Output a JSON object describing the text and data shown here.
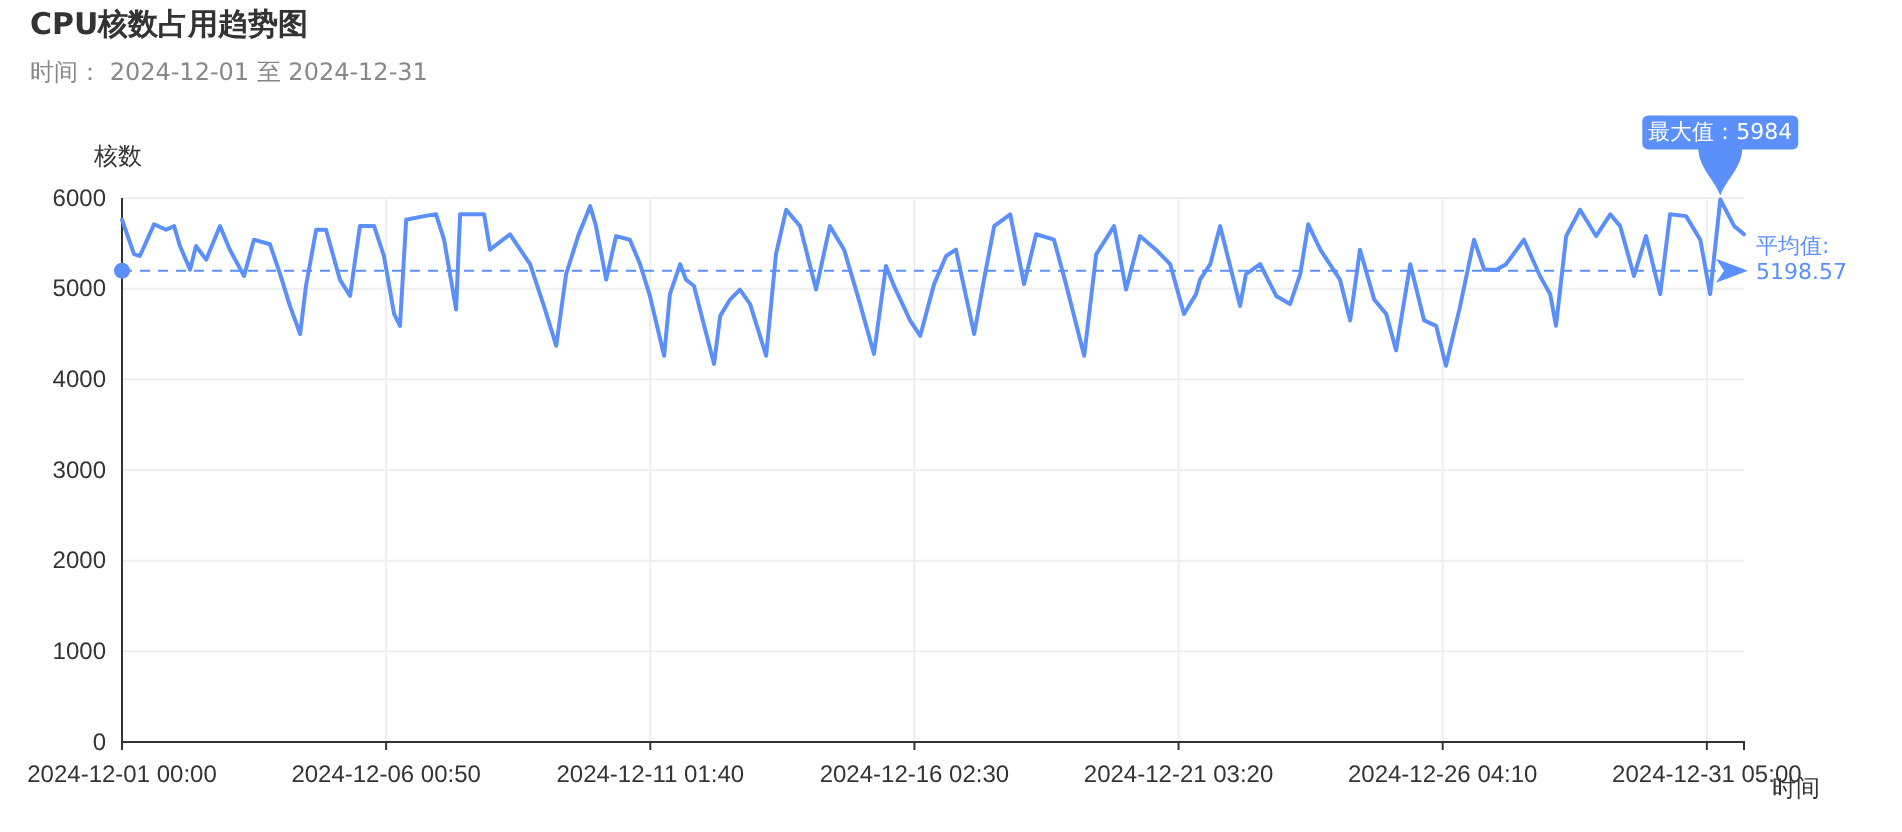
{
  "chart_data": {
    "type": "line",
    "title": "CPU核数占用趋势图",
    "subtitle": "时间： 2024-12-01 至 2024-12-31",
    "xlabel": "时间",
    "ylabel": "核数",
    "x": [
      "2024-12-01T00:00",
      "2024-12-01T05:30",
      "2024-12-01T08:10",
      "2024-12-01T14:40",
      "2024-12-01T20:10",
      "2024-12-01T23:50",
      "2024-12-02T02:30",
      "2024-12-02T07:10",
      "2024-12-02T09:50",
      "2024-12-02T14:30",
      "2024-12-02T20:50",
      "2024-12-03T01:20",
      "2024-12-03T07:50",
      "2024-12-03T12:20",
      "2024-12-03T19:40",
      "2024-12-04T00:20",
      "2024-12-04T04:50",
      "2024-12-04T09:30",
      "2024-12-04T12:10",
      "2024-12-04T16:50",
      "2024-12-04T21:20",
      "2024-12-05T03:40",
      "2024-12-05T08:20",
      "2024-12-05T12:50",
      "2024-12-05T19:20",
      "2024-12-05T23:50",
      "2024-12-06T04:30",
      "2024-12-06T07:10",
      "2024-12-06T10:00",
      "2024-12-06T18:10",
      "2024-12-06T23:40",
      "2024-12-07T03:20",
      "2024-12-07T08:50",
      "2024-12-07T10:40",
      "2024-12-07T17:00",
      "2024-12-07T21:40",
      "2024-12-08T00:20",
      "2024-12-08T09:30",
      "2024-12-08T18:40",
      "2024-12-09T01:00",
      "2024-12-09T06:40",
      "2024-12-09T11:10",
      "2024-12-09T16:40",
      "2024-12-09T22:10",
      "2024-12-10T00:50",
      "2024-12-10T05:30",
      "2024-12-10T10:00",
      "2024-12-10T16:20",
      "2024-12-10T21:00",
      "2024-12-11T01:30",
      "2024-12-11T08:00",
      "2024-12-11T10:40",
      "2024-12-11T15:20",
      "2024-12-11T18:00",
      "2024-12-11T21:40",
      "2024-12-12T02:20",
      "2024-12-12T06:50",
      "2024-12-12T09:40",
      "2024-12-12T14:10",
      "2024-12-12T18:40",
      "2024-12-12T23:20",
      "2024-12-13T06:40",
      "2024-12-13T11:10",
      "2024-12-13T15:50",
      "2024-12-13T22:10",
      "2024-12-14T05:30",
      "2024-12-14T11:50",
      "2024-12-14T18:20",
      "2024-12-15T01:40",
      "2024-12-15T08:00",
      "2024-12-15T13:30",
      "2024-12-15T17:10",
      "2024-12-16T00:30",
      "2024-12-16T05:10",
      "2024-12-16T11:30",
      "2024-12-16T17:00",
      "2024-12-16T21:30",
      "2024-12-17T05:50",
      "2024-12-17T10:20",
      "2024-12-17T15:00",
      "2024-12-17T22:20",
      "2024-12-18T04:40",
      "2024-12-18T10:10",
      "2024-12-18T18:20",
      "2024-12-18T23:50",
      "2024-12-19T08:10",
      "2024-12-19T13:40",
      "2024-12-19T21:50",
      "2024-12-20T03:20",
      "2024-12-20T09:40",
      "2024-12-20T17:00",
      "2024-12-20T23:30",
      "2024-12-21T05:50",
      "2024-12-21T11:20",
      "2024-12-21T13:10",
      "2024-12-21T17:50",
      "2024-12-21T22:20",
      "2024-12-22T07:30",
      "2024-12-22T10:10",
      "2024-12-22T16:40",
      "2024-12-23T00:00",
      "2024-12-23T06:20",
      "2024-12-23T11:00",
      "2024-12-23T14:40",
      "2024-12-23T20:10",
      "2024-12-24T05:10",
      "2024-12-24T09:50",
      "2024-12-24T14:20",
      "2024-12-24T20:50",
      "2024-12-25T02:20",
      "2024-12-25T06:50",
      "2024-12-25T13:20",
      "2024-12-25T19:40",
      "2024-12-26T01:10",
      "2024-12-26T05:40",
      "2024-12-26T12:10",
      "2024-12-26T18:30",
      "2024-12-26T23:10",
      "2024-12-27T04:40",
      "2024-12-27T09:10",
      "2024-12-27T17:20",
      "2024-12-28T00:40",
      "2024-12-28T05:20",
      "2024-12-28T08:00",
      "2024-12-28T12:40",
      "2024-12-28T19:00",
      "2024-12-29T02:20",
      "2024-12-29T08:50",
      "2024-12-29T13:20",
      "2024-12-29T19:40",
      "2024-12-30T01:10",
      "2024-12-30T07:40",
      "2024-12-30T12:10",
      "2024-12-30T19:30",
      "2024-12-31T02:00",
      "2024-12-31T06:30",
      "2024-12-31T11:10",
      "2024-12-31T17:30",
      "2024-12-31T22:00"
    ],
    "series": [
      {
        "color": "#5b8ff9",
        "values": [
          5760,
          5380,
          5360,
          5710,
          5650,
          5690,
          5470,
          5210,
          5470,
          5320,
          5690,
          5430,
          5140,
          5540,
          5490,
          5160,
          4810,
          4500,
          5030,
          5650,
          5650,
          5100,
          4920,
          5690,
          5690,
          5360,
          4720,
          4590,
          5760,
          5800,
          5820,
          5540,
          4770,
          5820,
          5820,
          5820,
          5430,
          5600,
          5270,
          4810,
          4370,
          5160,
          5580,
          5910,
          5690,
          5100,
          5580,
          5540,
          5270,
          4920,
          4260,
          4940,
          5270,
          5100,
          5030,
          4590,
          4170,
          4700,
          4880,
          4990,
          4830,
          4260,
          5380,
          5870,
          5690,
          4990,
          5690,
          5430,
          4830,
          4280,
          5250,
          5030,
          4650,
          4480,
          5050,
          5360,
          5430,
          4500,
          5100,
          5690,
          5820,
          5050,
          5600,
          5540,
          5050,
          4260,
          5380,
          5690,
          4990,
          5580,
          5430,
          5270,
          4720,
          4940,
          5100,
          5270,
          5690,
          4810,
          5160,
          5270,
          4920,
          4830,
          5160,
          5710,
          5430,
          5100,
          4650,
          5430,
          4880,
          4720,
          4320,
          5270,
          4650,
          4590,
          4150,
          4810,
          5540,
          5210,
          5210,
          5270,
          5540,
          5140,
          4940,
          4590,
          5580,
          5870,
          5580,
          5820,
          5690,
          5140,
          5580,
          4940,
          5820,
          5800,
          5540,
          4940,
          5984,
          5690,
          5600
        ]
      }
    ],
    "xlim": [
      "2024-12-01T00:00",
      "2024-12-31T22:00"
    ],
    "xticks": [
      {
        "value": "2024-12-01T00:00",
        "label": "2024-12-01 00:00"
      },
      {
        "value": "2024-12-06T00:50",
        "label": "2024-12-06 00:50"
      },
      {
        "value": "2024-12-11T01:40",
        "label": "2024-12-11 01:40"
      },
      {
        "value": "2024-12-16T02:30",
        "label": "2024-12-16 02:30"
      },
      {
        "value": "2024-12-21T03:20",
        "label": "2024-12-21 03:20"
      },
      {
        "value": "2024-12-26T04:10",
        "label": "2024-12-26 04:10"
      },
      {
        "value": "2024-12-31T05:00",
        "label": "2024-12-31 05:00"
      }
    ],
    "ylim": [
      0,
      6000
    ],
    "yticks": [
      0,
      1000,
      2000,
      3000,
      4000,
      5000,
      6000
    ],
    "grid": true,
    "marker": "none",
    "line_style": "solid",
    "ref_lines": [
      {
        "axis": "y",
        "value": 5198.57,
        "label": "平均值:\n5198.57",
        "line_style": "dashed",
        "color": "#5b8ff9"
      }
    ],
    "annotations": [
      {
        "text": "最大值：5984",
        "x": "2024-12-31T11:10",
        "y": 5984
      }
    ]
  }
}
